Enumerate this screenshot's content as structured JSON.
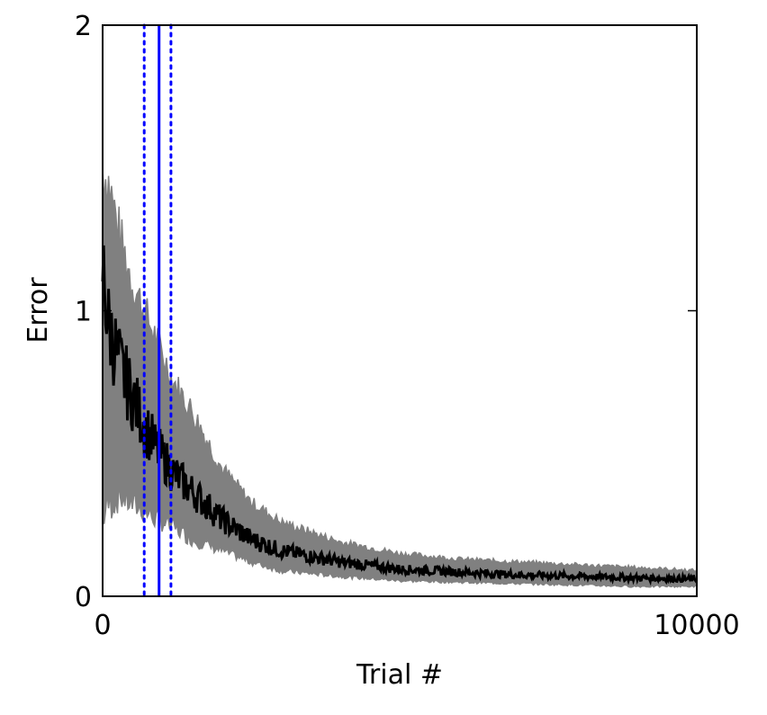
{
  "chart_data": {
    "type": "line",
    "xlabel": "Trial #",
    "ylabel": "Error",
    "xlim": [
      0,
      10000
    ],
    "ylim": [
      0,
      2
    ],
    "xticks": [
      {
        "value": 0,
        "label": "0"
      },
      {
        "value": 10000,
        "label": "10000"
      }
    ],
    "yticks": [
      {
        "value": 0,
        "label": "0"
      },
      {
        "value": 1,
        "label": "1"
      },
      {
        "value": 2,
        "label": "2"
      }
    ],
    "grid": false,
    "legend": "none",
    "band": {
      "color": "#808080",
      "x": [
        0,
        100,
        300,
        500,
        700,
        900,
        1200,
        1500,
        2000,
        2500,
        3000,
        4000,
        5000,
        6000,
        7000,
        8000,
        9000,
        10000
      ],
      "upper": [
        1.5,
        1.45,
        1.25,
        1.1,
        1.0,
        0.9,
        0.75,
        0.65,
        0.45,
        0.33,
        0.26,
        0.19,
        0.15,
        0.13,
        0.12,
        0.11,
        0.1,
        0.09
      ],
      "lower": [
        0.28,
        0.32,
        0.35,
        0.32,
        0.3,
        0.27,
        0.24,
        0.2,
        0.16,
        0.12,
        0.09,
        0.07,
        0.055,
        0.05,
        0.045,
        0.04,
        0.035,
        0.035
      ]
    },
    "mean": {
      "color": "#000000",
      "x": [
        0,
        100,
        300,
        500,
        700,
        900,
        1200,
        1500,
        2000,
        2500,
        3000,
        4000,
        5000,
        6000,
        7000,
        8000,
        9000,
        10000
      ],
      "y": [
        1.15,
        0.95,
        0.8,
        0.7,
        0.6,
        0.52,
        0.43,
        0.37,
        0.27,
        0.2,
        0.16,
        0.12,
        0.095,
        0.085,
        0.075,
        0.07,
        0.065,
        0.06
      ]
    },
    "vlines": [
      {
        "x": 700,
        "style": "dotted",
        "color": "#0000ff"
      },
      {
        "x": 950,
        "style": "solid",
        "color": "#0000ff"
      },
      {
        "x": 1150,
        "style": "dotted",
        "color": "#0000ff"
      }
    ]
  }
}
